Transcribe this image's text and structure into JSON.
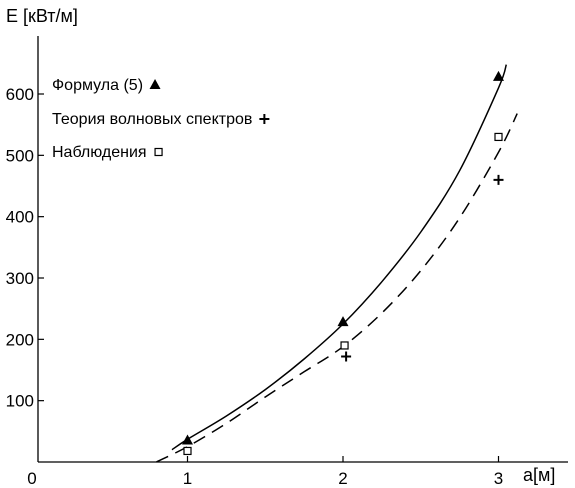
{
  "chart_data": {
    "type": "scatter",
    "ylabel": "E [кВт/м]",
    "xlabel": "a[м]",
    "origin_label": "0",
    "xlim": [
      0,
      3.5
    ],
    "ylim": [
      0,
      690
    ],
    "x_ticks": [
      1,
      2,
      3
    ],
    "y_ticks": [
      100,
      200,
      300,
      400,
      500,
      600
    ],
    "legend_position": "top-left",
    "series": [
      {
        "name": "Формула (5)",
        "marker": "triangle",
        "points": [
          [
            1,
            35
          ],
          [
            2,
            228
          ],
          [
            3,
            628
          ]
        ]
      },
      {
        "name": "Теория волновых спектров",
        "marker": "plus",
        "points": [
          [
            2.02,
            172
          ],
          [
            3,
            460
          ]
        ]
      },
      {
        "name": "Наблюдения",
        "marker": "square",
        "points": [
          [
            1,
            18
          ],
          [
            2.01,
            190
          ],
          [
            3,
            530
          ]
        ]
      }
    ],
    "curves": [
      {
        "style": "solid",
        "points": [
          [
            0.9,
            20
          ],
          [
            1,
            37
          ],
          [
            1.25,
            75
          ],
          [
            1.5,
            118
          ],
          [
            1.75,
            168
          ],
          [
            2,
            225
          ],
          [
            2.25,
            294
          ],
          [
            2.5,
            375
          ],
          [
            2.75,
            475
          ],
          [
            3,
            610
          ],
          [
            3.05,
            648
          ]
        ]
      },
      {
        "style": "dashed",
        "points": [
          [
            0.8,
            0
          ],
          [
            1,
            25
          ],
          [
            1.25,
            63
          ],
          [
            1.5,
            106
          ],
          [
            1.75,
            147
          ],
          [
            2,
            188
          ],
          [
            2.25,
            243
          ],
          [
            2.5,
            312
          ],
          [
            2.75,
            398
          ],
          [
            3,
            505
          ],
          [
            3.12,
            568
          ]
        ]
      }
    ]
  }
}
